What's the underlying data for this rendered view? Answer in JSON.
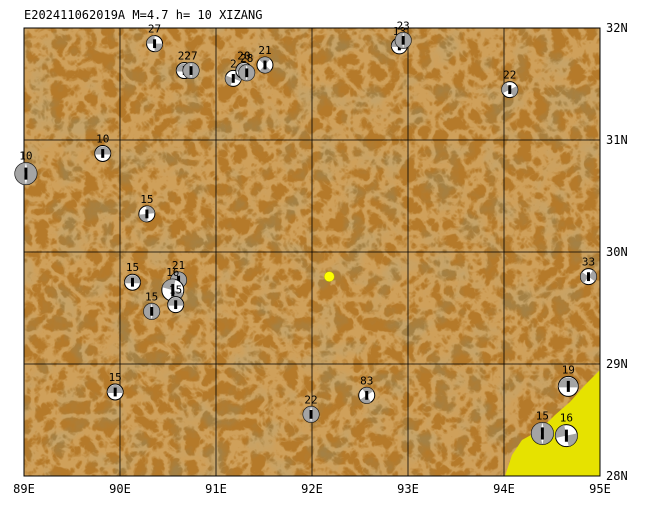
{
  "header": {
    "title": "E202411062019A M=4.7 h= 10 XIZANG"
  },
  "axes": {
    "lon_labels": [
      "89E",
      "90E",
      "91E",
      "92E",
      "93E",
      "94E",
      "95E"
    ],
    "lat_labels": [
      "32N",
      "31N",
      "30N",
      "29N",
      "28N"
    ],
    "lon_range": [
      89,
      95
    ],
    "lat_range": [
      28,
      32
    ]
  },
  "colors": {
    "land_base": "#b57a2a",
    "land_dark": "#8f5a1c",
    "land_light": "#c9944a",
    "lowland_yellow": "#e6e200",
    "grid": "#000000",
    "event_marker": "#ffff00",
    "beachball_fill": "#9a9a9a"
  },
  "event": {
    "lon": 92.18,
    "lat": 29.78,
    "icon": "event-star-dot"
  },
  "mechanisms": [
    {
      "lon": 90.36,
      "lat": 31.86,
      "depth": "27"
    },
    {
      "lon": 90.67,
      "lat": 31.62,
      "depth": "22"
    },
    {
      "lon": 90.74,
      "lat": 31.62,
      "depth": "27"
    },
    {
      "lon": 91.18,
      "lat": 31.55,
      "depth": "2"
    },
    {
      "lon": 91.29,
      "lat": 31.62,
      "depth": "20"
    },
    {
      "lon": 91.32,
      "lat": 31.6,
      "depth": "28"
    },
    {
      "lon": 91.51,
      "lat": 31.67,
      "depth": "21"
    },
    {
      "lon": 92.91,
      "lat": 31.84,
      "depth": "13"
    },
    {
      "lon": 92.95,
      "lat": 31.89,
      "depth": "23"
    },
    {
      "lon": 94.06,
      "lat": 31.45,
      "depth": "22"
    },
    {
      "lon": 89.82,
      "lat": 30.88,
      "depth": "10"
    },
    {
      "lon": 89.02,
      "lat": 30.7,
      "depth": "10"
    },
    {
      "lon": 90.28,
      "lat": 30.34,
      "depth": "15"
    },
    {
      "lon": 90.13,
      "lat": 29.73,
      "depth": "15"
    },
    {
      "lon": 90.61,
      "lat": 29.75,
      "depth": "21"
    },
    {
      "lon": 90.55,
      "lat": 29.66,
      "depth": "16"
    },
    {
      "lon": 90.58,
      "lat": 29.53,
      "depth": "15"
    },
    {
      "lon": 90.33,
      "lat": 29.47,
      "depth": "15"
    },
    {
      "lon": 94.88,
      "lat": 29.78,
      "depth": "33"
    },
    {
      "lon": 89.95,
      "lat": 28.75,
      "depth": "15"
    },
    {
      "lon": 91.99,
      "lat": 28.55,
      "depth": "22"
    },
    {
      "lon": 92.57,
      "lat": 28.72,
      "depth": "83"
    },
    {
      "lon": 94.67,
      "lat": 28.8,
      "depth": "19"
    },
    {
      "lon": 94.4,
      "lat": 28.38,
      "depth": "15"
    },
    {
      "lon": 94.65,
      "lat": 28.36,
      "depth": "16"
    }
  ]
}
